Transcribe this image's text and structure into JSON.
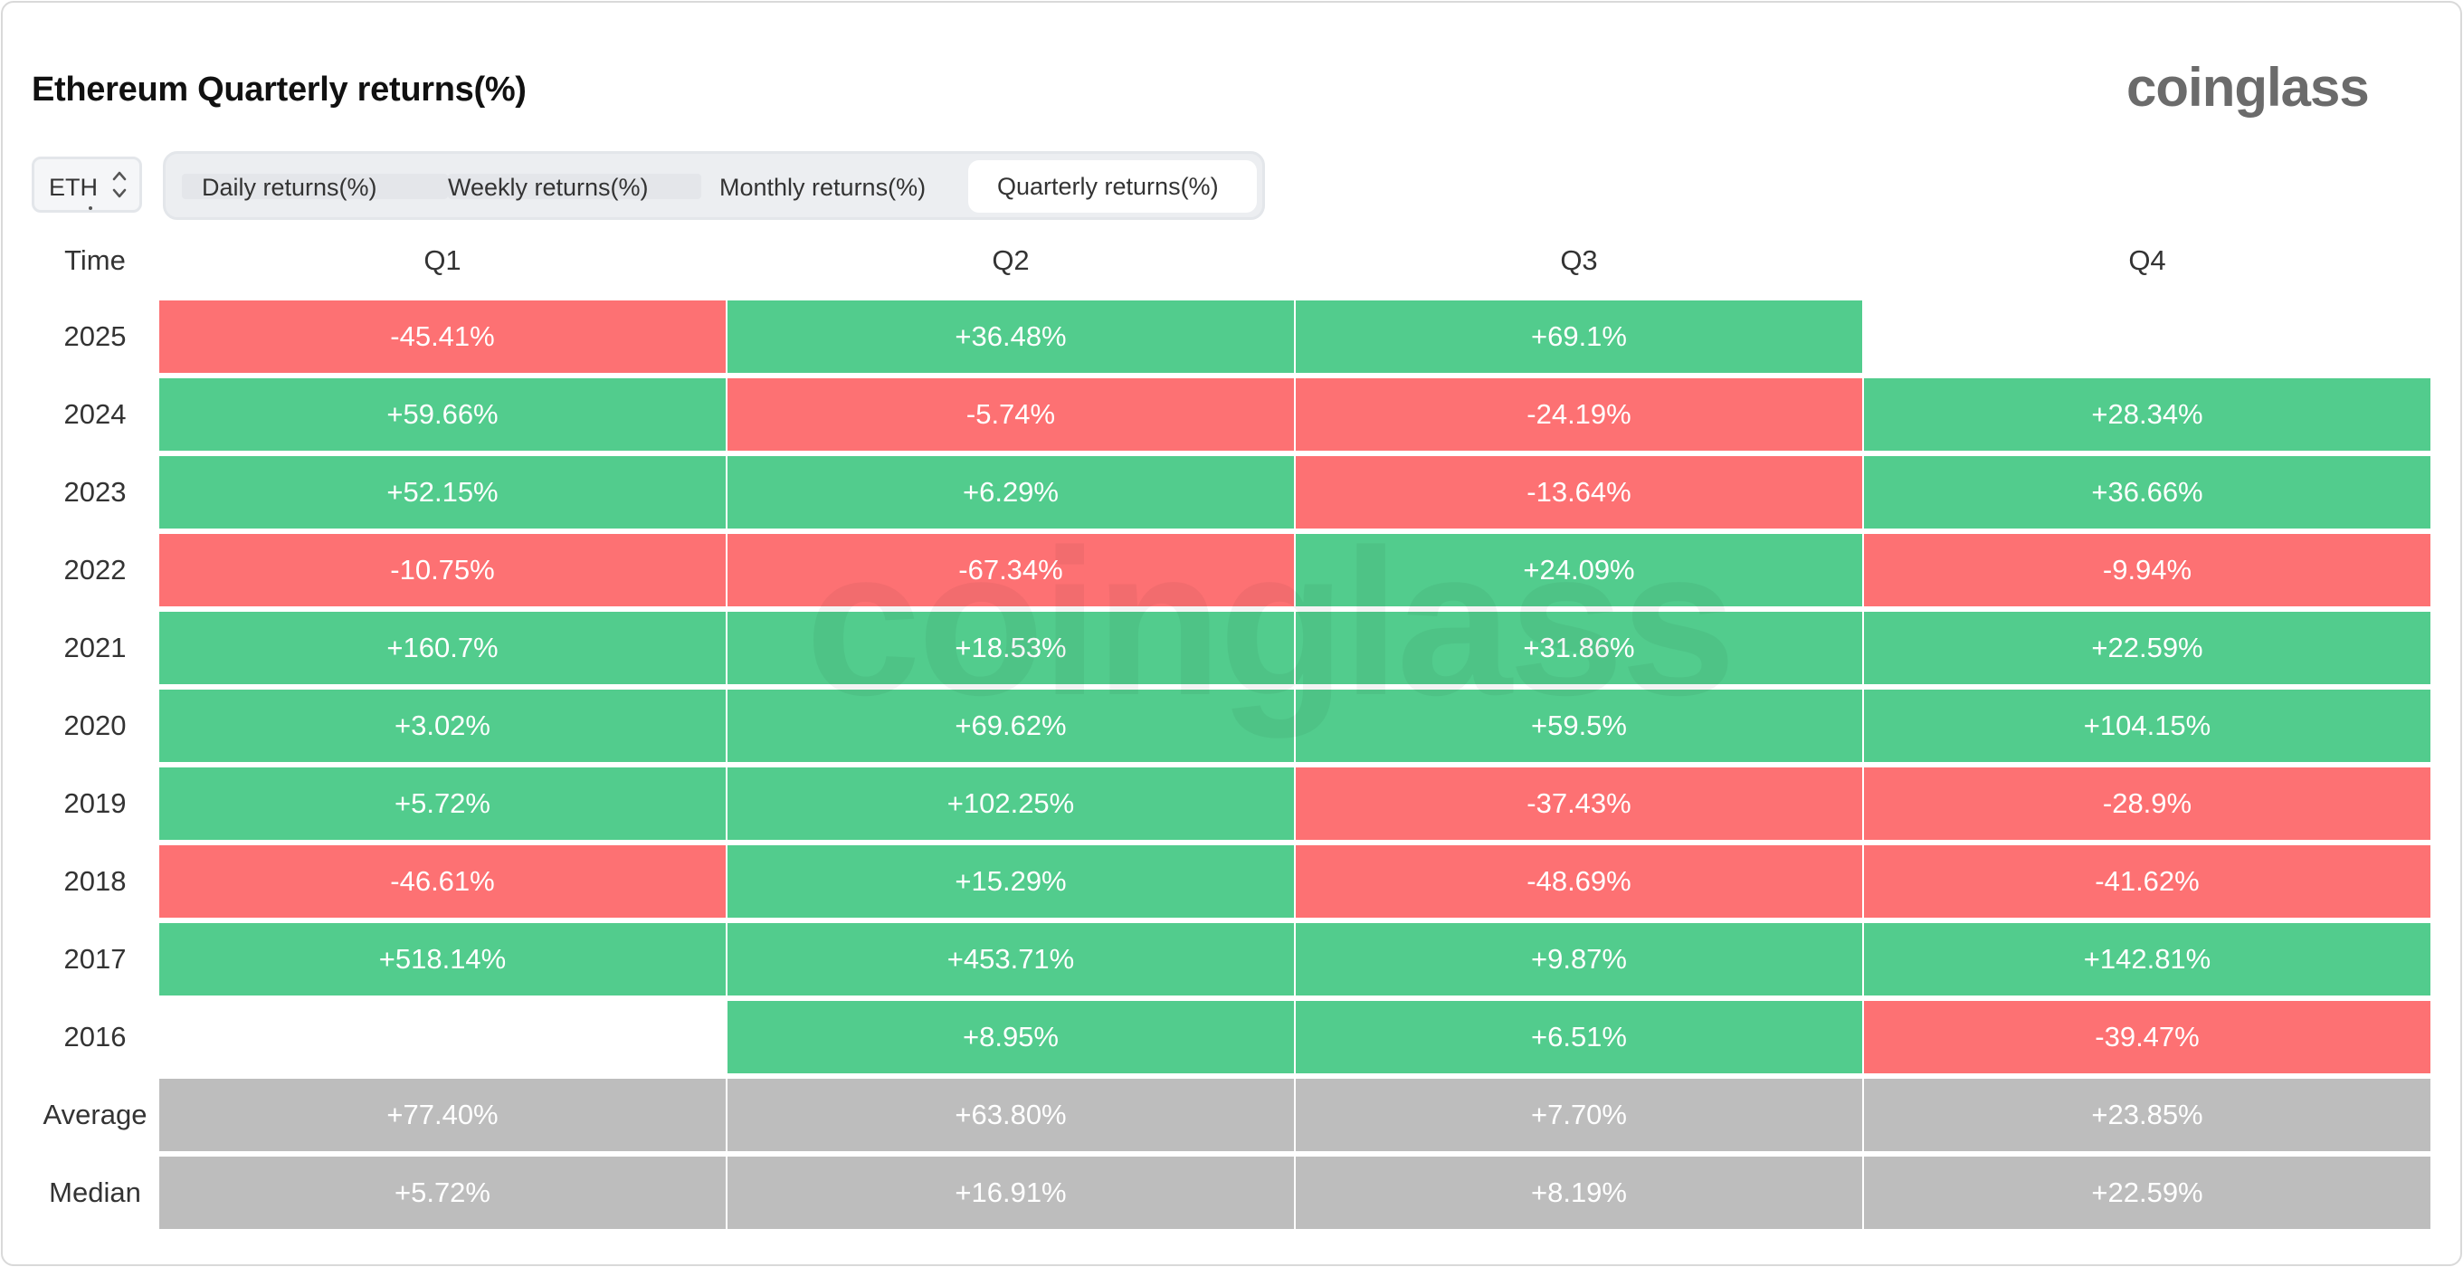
{
  "header": {
    "title": "Ethereum Quarterly returns(%)",
    "logo": "coinglass",
    "watermark": "coinglass"
  },
  "controls": {
    "coin_select": {
      "value": "ETH"
    },
    "tabs": [
      {
        "label": "Daily returns(%)",
        "active": false
      },
      {
        "label": "Weekly returns(%)",
        "active": false
      },
      {
        "label": "Monthly returns(%)",
        "active": false
      },
      {
        "label": "Quarterly returns(%)",
        "active": true
      }
    ]
  },
  "colors": {
    "positive": "#52cc8d",
    "negative": "#fd7173",
    "summary": "#bdbdbd"
  },
  "chart_data": {
    "type": "heatmap",
    "title": "Ethereum Quarterly returns(%)",
    "row_header": "Time",
    "columns": [
      "Q1",
      "Q2",
      "Q3",
      "Q4"
    ],
    "rows": [
      {
        "label": "2025",
        "values": [
          "-45.41%",
          "+36.48%",
          "+69.1%",
          null
        ]
      },
      {
        "label": "2024",
        "values": [
          "+59.66%",
          "-5.74%",
          "-24.19%",
          "+28.34%"
        ]
      },
      {
        "label": "2023",
        "values": [
          "+52.15%",
          "+6.29%",
          "-13.64%",
          "+36.66%"
        ]
      },
      {
        "label": "2022",
        "values": [
          "-10.75%",
          "-67.34%",
          "+24.09%",
          "-9.94%"
        ]
      },
      {
        "label": "2021",
        "values": [
          "+160.7%",
          "+18.53%",
          "+31.86%",
          "+22.59%"
        ]
      },
      {
        "label": "2020",
        "values": [
          "+3.02%",
          "+69.62%",
          "+59.5%",
          "+104.15%"
        ]
      },
      {
        "label": "2019",
        "values": [
          "+5.72%",
          "+102.25%",
          "-37.43%",
          "-28.9%"
        ]
      },
      {
        "label": "2018",
        "values": [
          "-46.61%",
          "+15.29%",
          "-48.69%",
          "-41.62%"
        ]
      },
      {
        "label": "2017",
        "values": [
          "+518.14%",
          "+453.71%",
          "+9.87%",
          "+142.81%"
        ]
      },
      {
        "label": "2016",
        "values": [
          null,
          "+8.95%",
          "+6.51%",
          "-39.47%"
        ]
      }
    ],
    "summary": [
      {
        "label": "Average",
        "values": [
          "+77.40%",
          "+63.80%",
          "+7.70%",
          "+23.85%"
        ]
      },
      {
        "label": "Median",
        "values": [
          "+5.72%",
          "+16.91%",
          "+8.19%",
          "+22.59%"
        ]
      }
    ]
  }
}
